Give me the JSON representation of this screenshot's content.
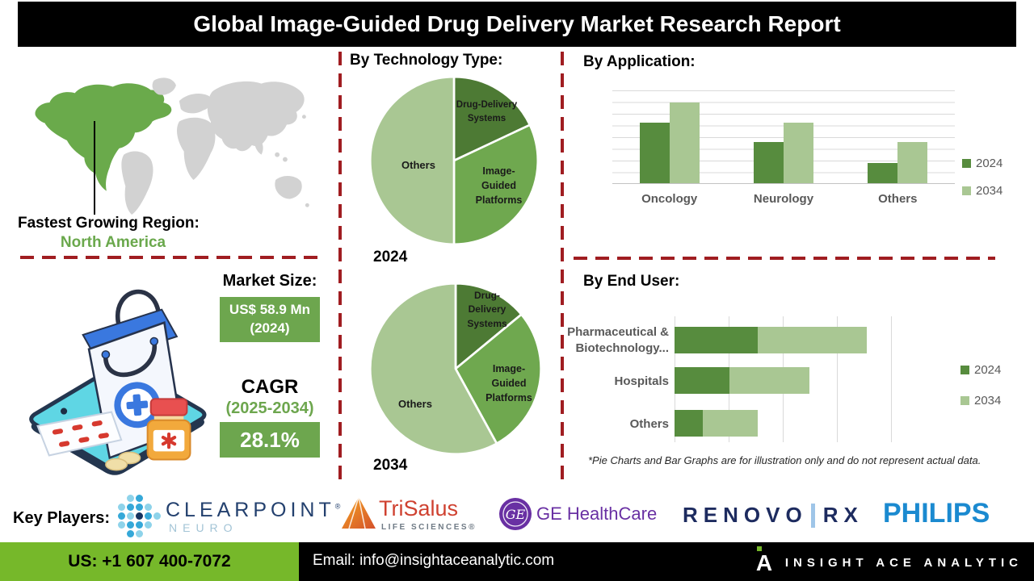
{
  "title": "Global Image-Guided Drug Delivery Market Research Report",
  "region": {
    "label": "Fastest Growing Region:",
    "value": "North America"
  },
  "market": {
    "size_label": "Market Size:",
    "size_value": "US$ 58.9 Mn\n(2024)",
    "cagr_label": "CAGR",
    "cagr_period": "(2025-2034)",
    "cagr_value": "28.1%"
  },
  "sections": {
    "technology": "By Technology Type:",
    "application": "By Application:",
    "end_user": "By End User:"
  },
  "pie_labels": {
    "p2024": {
      "seg1": "Drug-Delivery\nSystems",
      "seg2": "Image-\nGuided\nPlatforms",
      "seg3": "Others",
      "year": "2024"
    },
    "p2034": {
      "seg1": "Drug-\nDelivery\nSystems",
      "seg2": "Image-\nGuided\nPlatforms",
      "seg3": "Others",
      "year": "2034"
    }
  },
  "footnote": "*Pie Charts and Bar Graphs are for illustration only and do not represent actual data.",
  "chart_data": [
    {
      "type": "pie",
      "title": "By Technology Type: 2024",
      "labels": [
        "Drug-Delivery Systems",
        "Image-Guided Platforms",
        "Others"
      ],
      "values": [
        18,
        32,
        50
      ],
      "colors": [
        "#4d7a34",
        "#6fa84f",
        "#a9c793"
      ],
      "note": "illustration only"
    },
    {
      "type": "pie",
      "title": "By Technology Type: 2034",
      "labels": [
        "Drug-Delivery Systems",
        "Image-Guided Platforms",
        "Others"
      ],
      "values": [
        14,
        28,
        58
      ],
      "colors": [
        "#4d7a34",
        "#6fa84f",
        "#a9c793"
      ],
      "note": "illustration only"
    },
    {
      "type": "bar",
      "title": "By Application:",
      "categories": [
        "Oncology",
        "Neurology",
        "Others"
      ],
      "series": [
        {
          "name": "2024",
          "color": "#578c3e",
          "values": [
            65,
            44,
            22
          ]
        },
        {
          "name": "2034",
          "color": "#a9c793",
          "values": [
            87,
            65,
            44
          ]
        }
      ],
      "ylim": [
        0,
        100
      ],
      "grid": true,
      "legend_position": "right",
      "note": "illustration only"
    },
    {
      "type": "stacked-bar-horizontal",
      "title": "By End User:",
      "categories": [
        "Pharmaceutical &\nBiotechnology...",
        "Hospitals",
        "Others"
      ],
      "series": [
        {
          "name": "2024",
          "color": "#578c3e",
          "values": [
            38,
            25,
            13
          ]
        },
        {
          "name": "2034",
          "color": "#a9c793",
          "values": [
            50,
            37,
            25
          ]
        }
      ],
      "xlim": [
        0,
        100
      ],
      "grid": true,
      "legend_position": "right",
      "note": "illustration only"
    }
  ],
  "key_players": {
    "label": "Key Players:",
    "clearpoint": {
      "name": "CLEARPOINT",
      "reg": "®",
      "sub": "NEURO"
    },
    "trisalus": {
      "name": "TriSalus",
      "sub": "LIFE SCIENCES®"
    },
    "ge": {
      "monogram": "GE",
      "name": "GE HealthCare"
    },
    "renovo": {
      "name": "RENOVO",
      "suffix": "RX"
    },
    "philips": {
      "name": "PHILIPS"
    }
  },
  "footer": {
    "phone": "US: +1 607 400-7072",
    "email": "Email: info@insightaceanalytic.com",
    "brand_initial": "A",
    "brand": "INSIGHT ACE ANALYTIC"
  },
  "colors": {
    "accent_green": "#6da64e",
    "footer_green": "#76b82a",
    "map_green": "#6aaa4b",
    "map_gray": "#d2d2d2",
    "divider_red": "#a01d21",
    "bar_dark": "#578c3e",
    "bar_light": "#a9c793"
  }
}
